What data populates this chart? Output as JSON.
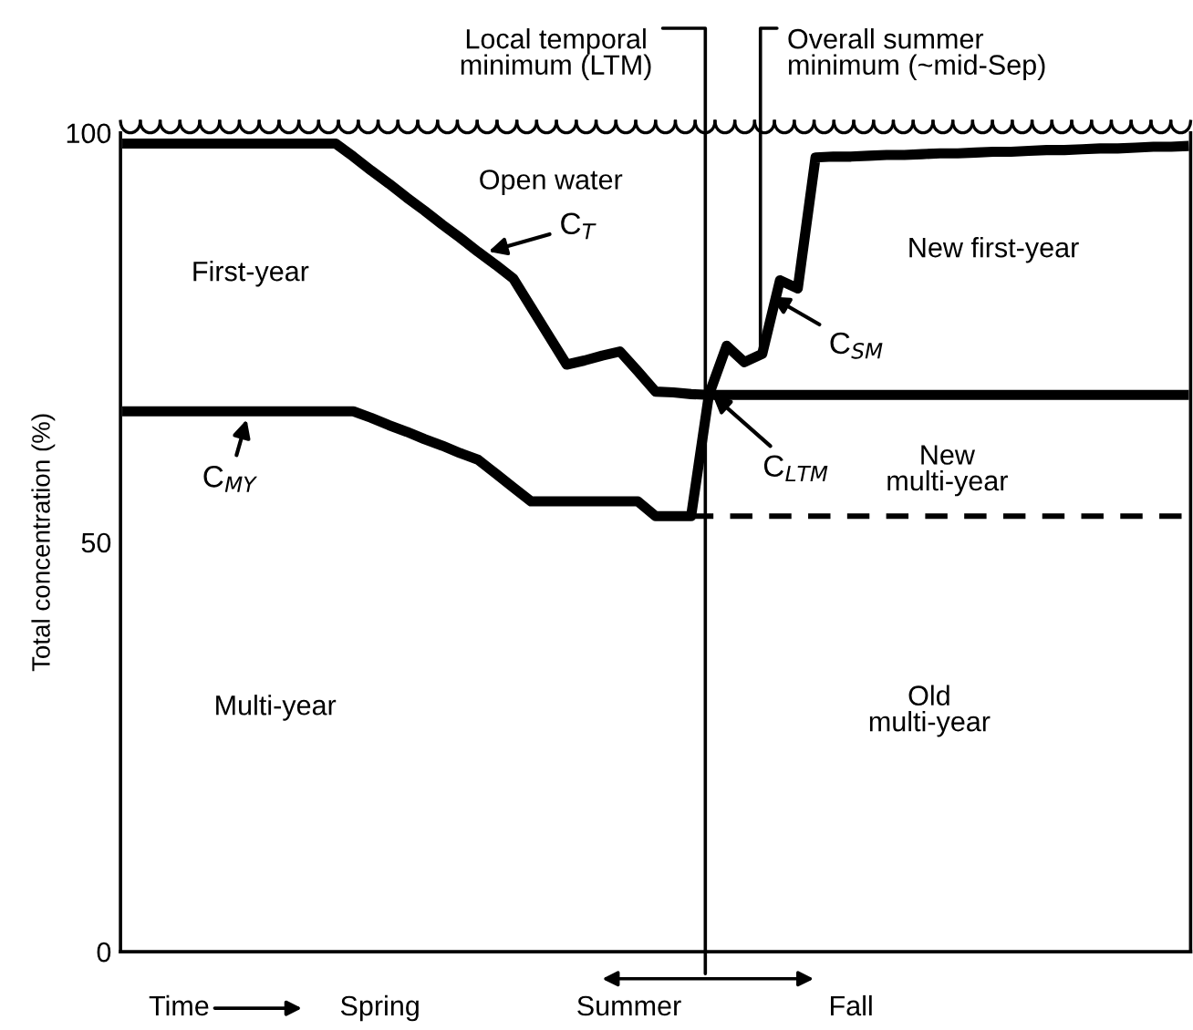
{
  "chart_data": {
    "type": "line",
    "ylabel": "Total concentration (%)",
    "categories": [
      null,
      null,
      null,
      null,
      null,
      null,
      null,
      null,
      null,
      null,
      null,
      null,
      null,
      null,
      null,
      null,
      null,
      null,
      null,
      null,
      null,
      null,
      null,
      null,
      null,
      null,
      null,
      null,
      null,
      null,
      null,
      null,
      null,
      null,
      null,
      null,
      null,
      null,
      null,
      null,
      null,
      null,
      null,
      null,
      null,
      null,
      null,
      null,
      null,
      null,
      null,
      null,
      null,
      null,
      null,
      null,
      null,
      null,
      null,
      null,
      null
    ],
    "series": [
      {
        "name": "C$_{T}$",
        "color": "#000000",
        "values": [
          98.7,
          98.7,
          98.7,
          98.7,
          98.7,
          98.7,
          98.7,
          98.7,
          98.7,
          98.7,
          98.7,
          98.7,
          98.7,
          97.1,
          95.4,
          93.8,
          92.1,
          90.5,
          88.8,
          87.2,
          85.5,
          83.9,
          82.2,
          78.7,
          75.2,
          71.7,
          72.2,
          72.8,
          73.3,
          70.9,
          68.4,
          68.3,
          68.1,
          68,
          74,
          72,
          73,
          82,
          81,
          97,
          97.1,
          97.1,
          97.2,
          97.3,
          97.3,
          97.4,
          97.5,
          97.5,
          97.6,
          97.7,
          97.7,
          97.8,
          97.9,
          97.9,
          98,
          98.1,
          98.1,
          98.2,
          98.3,
          98.3,
          98.4
        ]
      },
      {
        "name": "C$_{MY}$",
        "color": "#000000",
        "values": [
          66,
          66,
          66,
          66,
          66,
          66,
          66,
          66,
          66,
          66,
          66,
          66,
          66,
          66,
          65.2,
          64.3,
          63.5,
          62.6,
          61.8,
          60.9,
          60.1,
          58.4,
          56.7,
          55,
          55,
          55,
          55,
          55,
          55,
          55,
          53.2,
          53.2,
          53.2,
          68,
          68,
          68,
          68,
          68,
          68,
          68,
          68,
          68,
          68,
          68,
          68,
          68,
          68,
          68,
          68,
          68,
          68,
          68,
          68,
          68,
          68,
          68,
          68,
          68,
          68,
          68,
          68
        ]
      },
      {
        "color": "#000000",
        "line_style": "dashed",
        "values": [
          null,
          null,
          null,
          null,
          null,
          null,
          null,
          null,
          null,
          null,
          null,
          null,
          null,
          null,
          null,
          null,
          null,
          null,
          null,
          null,
          null,
          null,
          null,
          null,
          null,
          null,
          null,
          null,
          null,
          null,
          null,
          null,
          53.2,
          53.2,
          53.2,
          53.2,
          53.2,
          53.2,
          53.2,
          53.2,
          53.2,
          53.2,
          53.2,
          53.2,
          53.2,
          53.2,
          53.2,
          53.2,
          53.2,
          53.2,
          53.2,
          53.2,
          53.2,
          53.2,
          53.2,
          53.2,
          53.2,
          53.2,
          53.2,
          53.2,
          53.2
        ]
      }
    ],
    "annotations": [
      "Local temporal\nminimum (LTM)",
      "Overall summer\nminimum (~mid-Sep)",
      "Open water",
      "First-year",
      "New first-year",
      "New\nmulti-year",
      "Multi-year",
      "Old\nmulti-year",
      "C$_{LTM}$",
      "C$_{SM}$",
      "Time",
      "Spring",
      "Summer",
      "Fall"
    ],
    "ylim": [
      0,
      100
    ],
    "yticks": [
      0,
      50,
      100
    ],
    "tick_labels": "y",
    "line_style": "solid"
  }
}
